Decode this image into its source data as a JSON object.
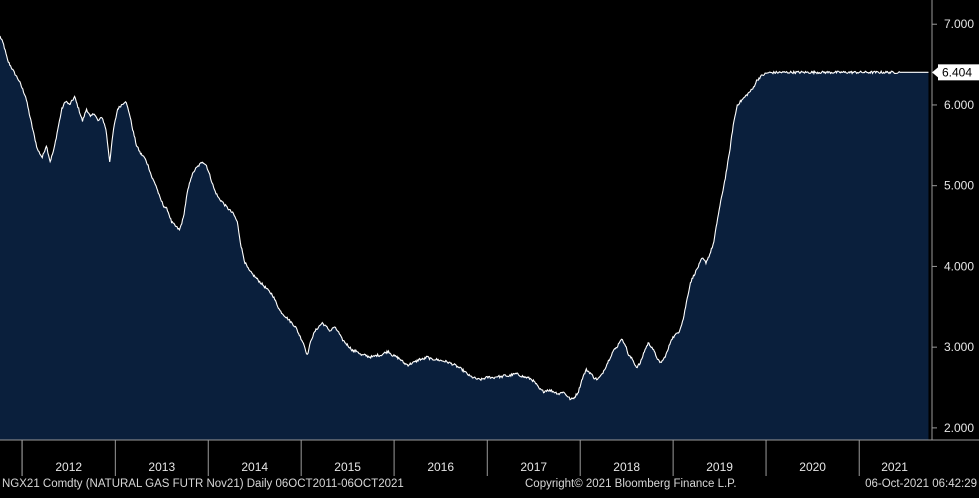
{
  "chart_data": {
    "type": "area",
    "title": "",
    "xlabel": "",
    "ylabel": "",
    "ylim": [
      1.85,
      7.3
    ],
    "xlim": [
      "2011-10-06",
      "2021-10-06"
    ],
    "grid": false,
    "legend": "none",
    "y_ticks": [
      "2.000",
      "3.000",
      "4.000",
      "5.000",
      "6.000",
      "7.000"
    ],
    "x_tick_labels": [
      "2012",
      "2013",
      "2014",
      "2015",
      "2016",
      "2017",
      "2018",
      "2019",
      "2020",
      "2021"
    ],
    "last_value_label": "6.404",
    "last_value": 6.404,
    "colors": {
      "background": "#000000",
      "area_fill": "#0a1f3c",
      "line": "#ffffff",
      "axis": "#9a9a9a",
      "label_box": "#ffffff",
      "label_text": "#000000"
    },
    "series": [
      {
        "x": [
          "2011-10-06",
          "2011-10-20",
          "2011-11-05",
          "2011-12-01",
          "2011-12-20",
          "2012-01-15",
          "2012-02-01",
          "2012-02-15",
          "2012-03-01",
          "2012-03-20",
          "2012-04-05",
          "2012-04-20",
          "2012-05-05",
          "2012-05-20",
          "2012-06-05",
          "2012-06-20",
          "2012-07-05",
          "2012-07-25",
          "2012-08-10",
          "2012-08-25",
          "2012-09-10",
          "2012-09-25",
          "2012-10-10",
          "2012-10-25",
          "2012-11-10",
          "2012-11-25",
          "2012-12-10",
          "2012-12-25",
          "2013-01-10",
          "2013-01-25",
          "2013-02-10",
          "2013-02-25",
          "2013-03-10",
          "2013-03-25",
          "2013-04-10",
          "2013-04-25",
          "2013-05-10",
          "2013-05-25",
          "2013-06-10",
          "2013-06-25",
          "2013-07-10",
          "2013-07-25",
          "2013-08-10",
          "2013-08-25",
          "2013-09-10",
          "2013-09-25",
          "2013-10-10",
          "2013-10-25",
          "2013-11-10",
          "2013-11-25",
          "2013-12-10",
          "2013-12-25",
          "2014-01-10",
          "2014-01-25",
          "2014-02-10",
          "2014-02-25",
          "2014-03-10",
          "2014-03-25",
          "2014-04-10",
          "2014-04-25",
          "2014-05-10",
          "2014-05-25",
          "2014-06-10",
          "2014-06-25",
          "2014-07-10",
          "2014-07-25",
          "2014-08-10",
          "2014-08-25",
          "2014-09-10",
          "2014-09-25",
          "2014-10-10",
          "2014-10-25",
          "2014-11-10",
          "2014-11-25",
          "2014-12-10",
          "2014-12-25",
          "2015-01-10",
          "2015-01-25",
          "2015-02-10",
          "2015-02-25",
          "2015-03-10",
          "2015-03-25",
          "2015-04-10",
          "2015-04-25",
          "2015-05-10",
          "2015-05-25",
          "2015-06-10",
          "2015-06-25",
          "2015-07-10",
          "2015-07-25",
          "2015-08-10",
          "2015-08-25",
          "2015-09-10",
          "2015-09-25",
          "2015-10-10",
          "2015-10-25",
          "2015-11-10",
          "2015-11-25",
          "2015-12-10",
          "2015-12-25",
          "2016-01-10",
          "2016-01-25",
          "2016-02-10",
          "2016-02-25",
          "2016-03-10",
          "2016-03-25",
          "2016-04-10",
          "2016-04-25",
          "2016-05-10",
          "2016-05-25",
          "2016-06-10",
          "2016-06-25",
          "2016-07-10",
          "2016-07-25",
          "2016-08-10",
          "2016-08-25",
          "2016-09-10",
          "2016-09-25",
          "2016-10-10",
          "2016-10-25",
          "2016-11-10",
          "2016-11-25",
          "2016-12-10",
          "2016-12-25",
          "2017-01-10",
          "2017-01-25",
          "2017-02-10",
          "2017-02-25",
          "2017-03-10",
          "2017-03-25",
          "2017-04-10",
          "2017-04-25",
          "2017-05-10",
          "2017-05-25",
          "2017-06-10",
          "2017-06-25",
          "2017-07-10",
          "2017-07-25",
          "2017-08-10",
          "2017-08-25",
          "2017-09-10",
          "2017-09-25",
          "2017-10-10",
          "2017-10-25",
          "2017-11-10",
          "2017-11-25",
          "2017-12-10",
          "2017-12-25",
          "2018-01-10",
          "2018-01-25",
          "2018-02-10",
          "2018-02-25",
          "2018-03-10",
          "2018-03-25",
          "2018-04-10",
          "2018-04-25",
          "2018-05-10",
          "2018-05-25",
          "2018-06-10",
          "2018-06-25",
          "2018-07-10",
          "2018-07-25",
          "2018-08-10",
          "2018-08-25",
          "2018-09-10",
          "2018-09-25",
          "2018-10-10",
          "2018-10-25",
          "2018-11-10",
          "2018-11-25",
          "2018-12-10",
          "2018-12-25",
          "2019-01-10",
          "2019-01-25",
          "2019-02-10",
          "2019-02-25",
          "2019-03-10",
          "2019-03-25",
          "2019-04-10",
          "2019-04-25",
          "2019-05-10",
          "2019-05-25",
          "2019-06-10",
          "2019-06-25",
          "2019-07-10",
          "2019-07-25",
          "2019-08-10",
          "2019-08-25",
          "2019-09-10",
          "2019-09-25",
          "2019-10-10",
          "2019-10-25",
          "2019-11-10",
          "2019-11-25",
          "2019-12-10",
          "2019-12-25",
          "2020-01-10",
          "2020-01-25",
          "2020-02-10",
          "2020-02-25",
          "2020-03-10",
          "2020-03-25",
          "2020-04-10",
          "2020-04-25",
          "2020-05-10",
          "2020-05-25",
          "2020-06-10",
          "2020-06-25",
          "2020-07-10",
          "2020-07-25",
          "2020-08-10",
          "2020-08-25",
          "2020-09-10",
          "2020-09-25",
          "2020-10-10",
          "2020-10-25",
          "2020-11-10",
          "2020-11-25",
          "2020-12-10",
          "2020-12-25",
          "2021-01-10",
          "2021-01-25",
          "2021-02-10",
          "2021-02-25",
          "2021-03-10",
          "2021-03-25",
          "2021-04-10",
          "2021-04-25",
          "2021-05-10",
          "2021-05-25",
          "2021-06-10",
          "2021-06-20",
          "2021-06-30",
          "2021-07-10",
          "2021-07-20",
          "2021-07-30",
          "2021-08-10",
          "2021-08-20",
          "2021-08-30",
          "2021-09-05",
          "2021-09-12",
          "2021-09-18",
          "2021-09-24",
          "2021-09-30",
          "2021-10-06"
        ],
        "values": [
          6.85,
          6.75,
          6.55,
          6.4,
          6.3,
          6.1,
          5.85,
          5.65,
          5.45,
          5.35,
          5.5,
          5.3,
          5.45,
          5.7,
          5.95,
          6.05,
          6.0,
          6.1,
          5.95,
          5.8,
          5.95,
          5.85,
          5.9,
          5.8,
          5.85,
          5.7,
          5.3,
          5.7,
          5.95,
          6.0,
          6.05,
          5.9,
          5.7,
          5.5,
          5.4,
          5.35,
          5.25,
          5.1,
          5.0,
          4.85,
          4.75,
          4.7,
          4.55,
          4.5,
          4.45,
          4.6,
          4.9,
          5.1,
          5.2,
          5.25,
          5.3,
          5.25,
          5.1,
          4.95,
          4.85,
          4.8,
          4.75,
          4.7,
          4.65,
          4.55,
          4.25,
          4.05,
          3.95,
          3.9,
          3.85,
          3.8,
          3.75,
          3.7,
          3.65,
          3.55,
          3.45,
          3.4,
          3.35,
          3.3,
          3.25,
          3.15,
          3.05,
          2.9,
          3.1,
          3.2,
          3.25,
          3.3,
          3.25,
          3.2,
          3.25,
          3.2,
          3.1,
          3.05,
          3.0,
          2.95,
          2.95,
          2.9,
          2.9,
          2.88,
          2.88,
          2.9,
          2.9,
          2.93,
          2.95,
          2.9,
          2.88,
          2.85,
          2.8,
          2.78,
          2.8,
          2.82,
          2.85,
          2.85,
          2.88,
          2.85,
          2.85,
          2.84,
          2.83,
          2.82,
          2.8,
          2.78,
          2.75,
          2.72,
          2.68,
          2.64,
          2.62,
          2.6,
          2.6,
          2.62,
          2.63,
          2.62,
          2.64,
          2.63,
          2.65,
          2.64,
          2.66,
          2.67,
          2.65,
          2.63,
          2.62,
          2.6,
          2.55,
          2.48,
          2.45,
          2.47,
          2.46,
          2.44,
          2.42,
          2.45,
          2.4,
          2.35,
          2.38,
          2.45,
          2.62,
          2.72,
          2.68,
          2.62,
          2.6,
          2.65,
          2.75,
          2.85,
          2.95,
          3.0,
          3.1,
          3.05,
          2.9,
          2.85,
          2.75,
          2.8,
          2.95,
          3.05,
          3.0,
          2.9,
          2.8,
          2.85,
          2.95,
          3.1,
          3.15,
          3.2,
          3.35,
          3.6,
          3.8,
          3.9,
          4.0,
          4.1,
          4.05,
          4.15,
          4.3,
          4.6,
          4.85,
          5.1,
          5.4,
          5.75,
          6.0,
          6.05,
          6.1,
          6.15,
          6.2,
          6.3,
          6.35,
          6.38,
          6.4,
          6.4,
          6.402,
          6.403,
          6.404,
          6.404,
          6.404,
          6.404,
          6.404,
          6.404,
          6.404,
          6.404,
          6.404,
          6.404,
          6.404,
          6.404,
          6.404,
          6.404,
          6.404,
          6.404,
          6.404,
          6.404,
          6.404,
          6.404,
          6.404,
          6.404,
          6.404,
          6.404,
          6.404,
          6.404,
          6.404,
          6.404,
          6.404,
          6.404,
          6.404,
          6.404,
          6.404,
          6.404,
          6.404,
          6.404,
          6.404,
          6.404,
          6.404,
          6.404,
          6.404,
          6.404,
          6.404,
          6.404,
          6.404
        ]
      }
    ]
  },
  "footer": {
    "ticker": "NGX21 Comdty (NATURAL GAS FUTR  Nov21)  Daily 06OCT2011-06OCT2021",
    "copyright": "Copyright© 2021 Bloomberg Finance L.P.",
    "timestamp": "06-Oct-2021 06:42:29"
  }
}
